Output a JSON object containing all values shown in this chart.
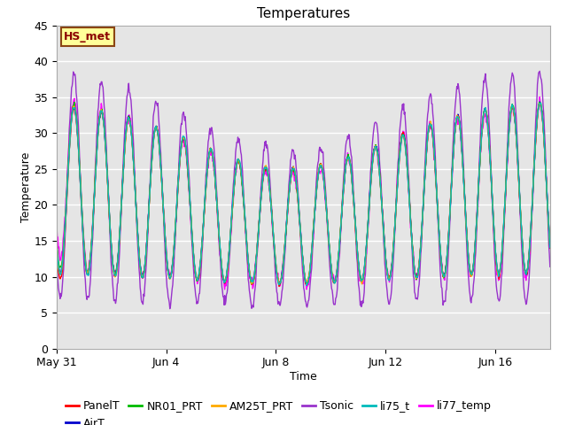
{
  "title": "Temperatures",
  "xlabel": "Time",
  "ylabel": "Temperature",
  "ylim": [
    0,
    45
  ],
  "yticks": [
    0,
    5,
    10,
    15,
    20,
    25,
    30,
    35,
    40,
    45
  ],
  "xtick_labels": [
    "May 31",
    "Jun 4",
    "Jun 8",
    "Jun 12",
    "Jun 16"
  ],
  "xtick_positions": [
    0,
    4,
    8,
    12,
    16
  ],
  "background_color": "#ffffff",
  "plot_bg_color": "#e5e5e5",
  "grid_color": "#ffffff",
  "series": [
    {
      "name": "PanelT",
      "color": "#ff0000"
    },
    {
      "name": "AirT",
      "color": "#0000cc"
    },
    {
      "name": "NR01_PRT",
      "color": "#00bb00"
    },
    {
      "name": "AM25T_PRT",
      "color": "#ffaa00"
    },
    {
      "name": "Tsonic",
      "color": "#9933cc"
    },
    {
      "name": "li75_t",
      "color": "#00bbbb"
    },
    {
      "name": "li77_temp",
      "color": "#ff00ff"
    }
  ],
  "annotation_text": "HS_met",
  "title_fontsize": 11,
  "axis_label_fontsize": 9,
  "tick_fontsize": 9,
  "legend_fontsize": 9,
  "linewidth": 1.0,
  "n_days": 18,
  "samples_per_day": 48
}
